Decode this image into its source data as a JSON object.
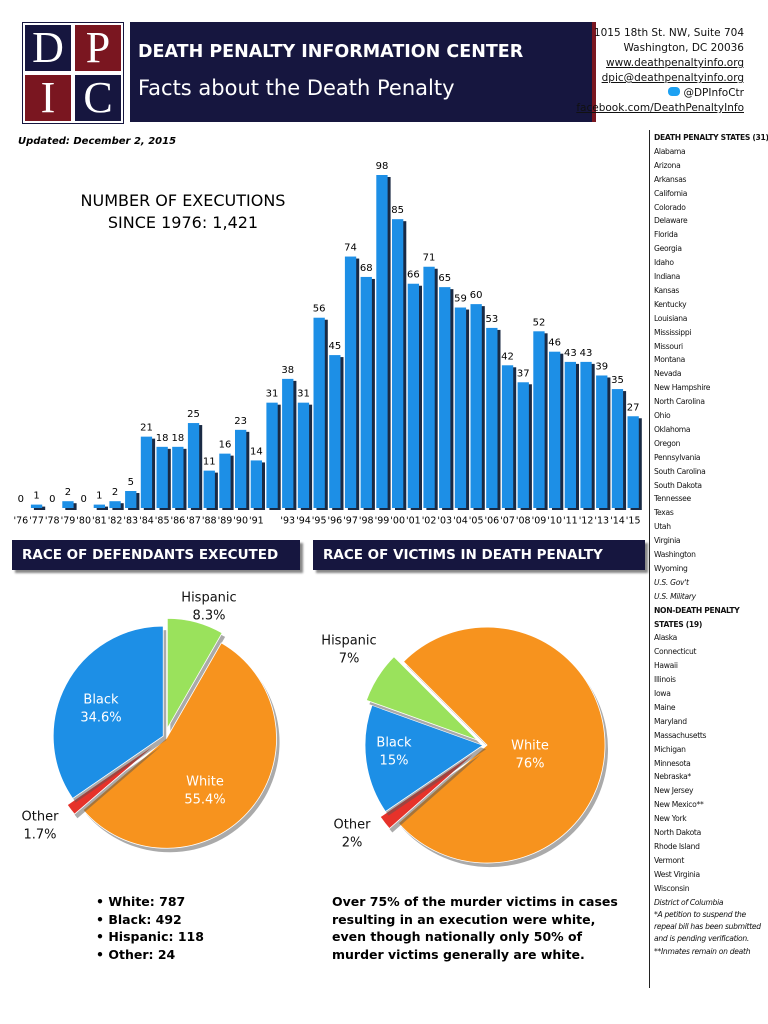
{
  "header": {
    "logo": [
      "D",
      "P",
      "I",
      "C"
    ],
    "organization": "DEATH PENALTY INFORMATION CENTER",
    "subtitle": "Facts about the Death Penalty",
    "address": [
      "1015 18th St. NW, Suite 704",
      "Washington, DC 20036"
    ],
    "links": [
      "www.deathpenaltyinfo.org",
      "dpic@deathpenaltyinfo.org",
      "@DPInfoCtr",
      "facebook.com/DeathPenaltyInfo"
    ]
  },
  "updated": "Updated: December 2, 2015",
  "chart_data": [
    {
      "type": "bar",
      "title": "NUMBER OF EXECUTIONS SINCE 1976: 1,421",
      "color": "#1d8fe6",
      "categories": [
        "'76",
        "'77",
        "'78",
        "'79",
        "'80",
        "'81",
        "'82",
        "'83",
        "'84",
        "'85",
        "'86",
        "'87",
        "'88",
        "'89",
        "'90",
        "'91",
        null,
        "'93",
        "'94",
        "'95",
        "'96",
        "'97",
        "'98",
        "'99",
        "'00",
        "'01",
        "'02",
        "'03",
        "'04",
        "'05",
        "'06",
        "'07",
        "'08",
        "'09",
        "'10",
        "'11",
        "'12",
        "'13",
        "'14",
        "'15"
      ],
      "values": [
        0,
        1,
        0,
        2,
        0,
        1,
        2,
        5,
        21,
        18,
        18,
        25,
        11,
        16,
        23,
        14,
        31,
        38,
        31,
        56,
        45,
        74,
        68,
        98,
        85,
        66,
        71,
        65,
        59,
        60,
        53,
        42,
        37,
        52,
        46,
        43,
        43,
        39,
        35,
        27
      ]
    },
    {
      "type": "pie",
      "title": "RACE OF DEFENDANTS EXECUTED",
      "categories": [
        "Hispanic",
        "White",
        "Other",
        "Black"
      ],
      "values": [
        8.3,
        55.4,
        1.7,
        34.6
      ],
      "value_labels": [
        "8.3%",
        "55.4%",
        "1.7%",
        "34.6%"
      ],
      "colors": [
        "#9ae25c",
        "#f7931e",
        "#e6322a",
        "#1d8fe6"
      ]
    },
    {
      "type": "pie",
      "title": "RACE OF VICTIMS IN DEATH PENALTY CASES",
      "categories": [
        "White",
        "Other",
        "Black",
        "Hispanic"
      ],
      "values": [
        76,
        2,
        15,
        7
      ],
      "value_labels": [
        "76%",
        "2%",
        "15%",
        "7%"
      ],
      "colors": [
        "#f7931e",
        "#e6322a",
        "#1d8fe6",
        "#9ae25c"
      ]
    }
  ],
  "defendant_counts": [
    "White: 787",
    "Black: 492",
    "Hispanic: 118",
    "Other: 24"
  ],
  "victim_note": "Over 75% of the murder victims in cases resulting in an execution were white, even though nationally only 50% of murder victims generally are white.",
  "sidebar": {
    "death_penalty_heading": "DEATH PENALTY STATES (31)",
    "death_penalty_states": [
      "Alabama",
      "Arizona",
      "Arkansas",
      "California",
      "Colorado",
      "Delaware",
      "Florida",
      "Georgia",
      "Idaho",
      "Indiana",
      "Kansas",
      "Kentucky",
      "Louisiana",
      "Mississippi",
      "Missouri",
      "Montana",
      "Nevada",
      "New Hampshire",
      "North Carolina",
      "Ohio",
      "Oklahoma",
      "Oregon",
      "Pennsylvania",
      "South Carolina",
      "South Dakota",
      "Tennessee",
      "Texas",
      "Utah",
      "Virginia",
      "Washington",
      "Wyoming"
    ],
    "federal": [
      "U.S. Gov't",
      "U.S. Military"
    ],
    "non_death_penalty_heading": "NON-DEATH PENALTY STATES (19)",
    "non_death_penalty_states": [
      "Alaska",
      "Connecticut",
      "Hawaii",
      "Illinois",
      "Iowa",
      "Maine",
      "Maryland",
      "Massachusetts",
      "Michigan",
      "Minnesota",
      "Nebraska*",
      "New Jersey",
      "New Mexico**",
      "New York",
      "North Dakota",
      "Rhode Island",
      "Vermont",
      "West Virginia",
      "Wisconsin"
    ],
    "district": "District of Columbia",
    "footnotes": [
      "*A petition to suspend the repeal bill has been submitted and is pending verification.",
      "**Inmates remain on death"
    ]
  }
}
